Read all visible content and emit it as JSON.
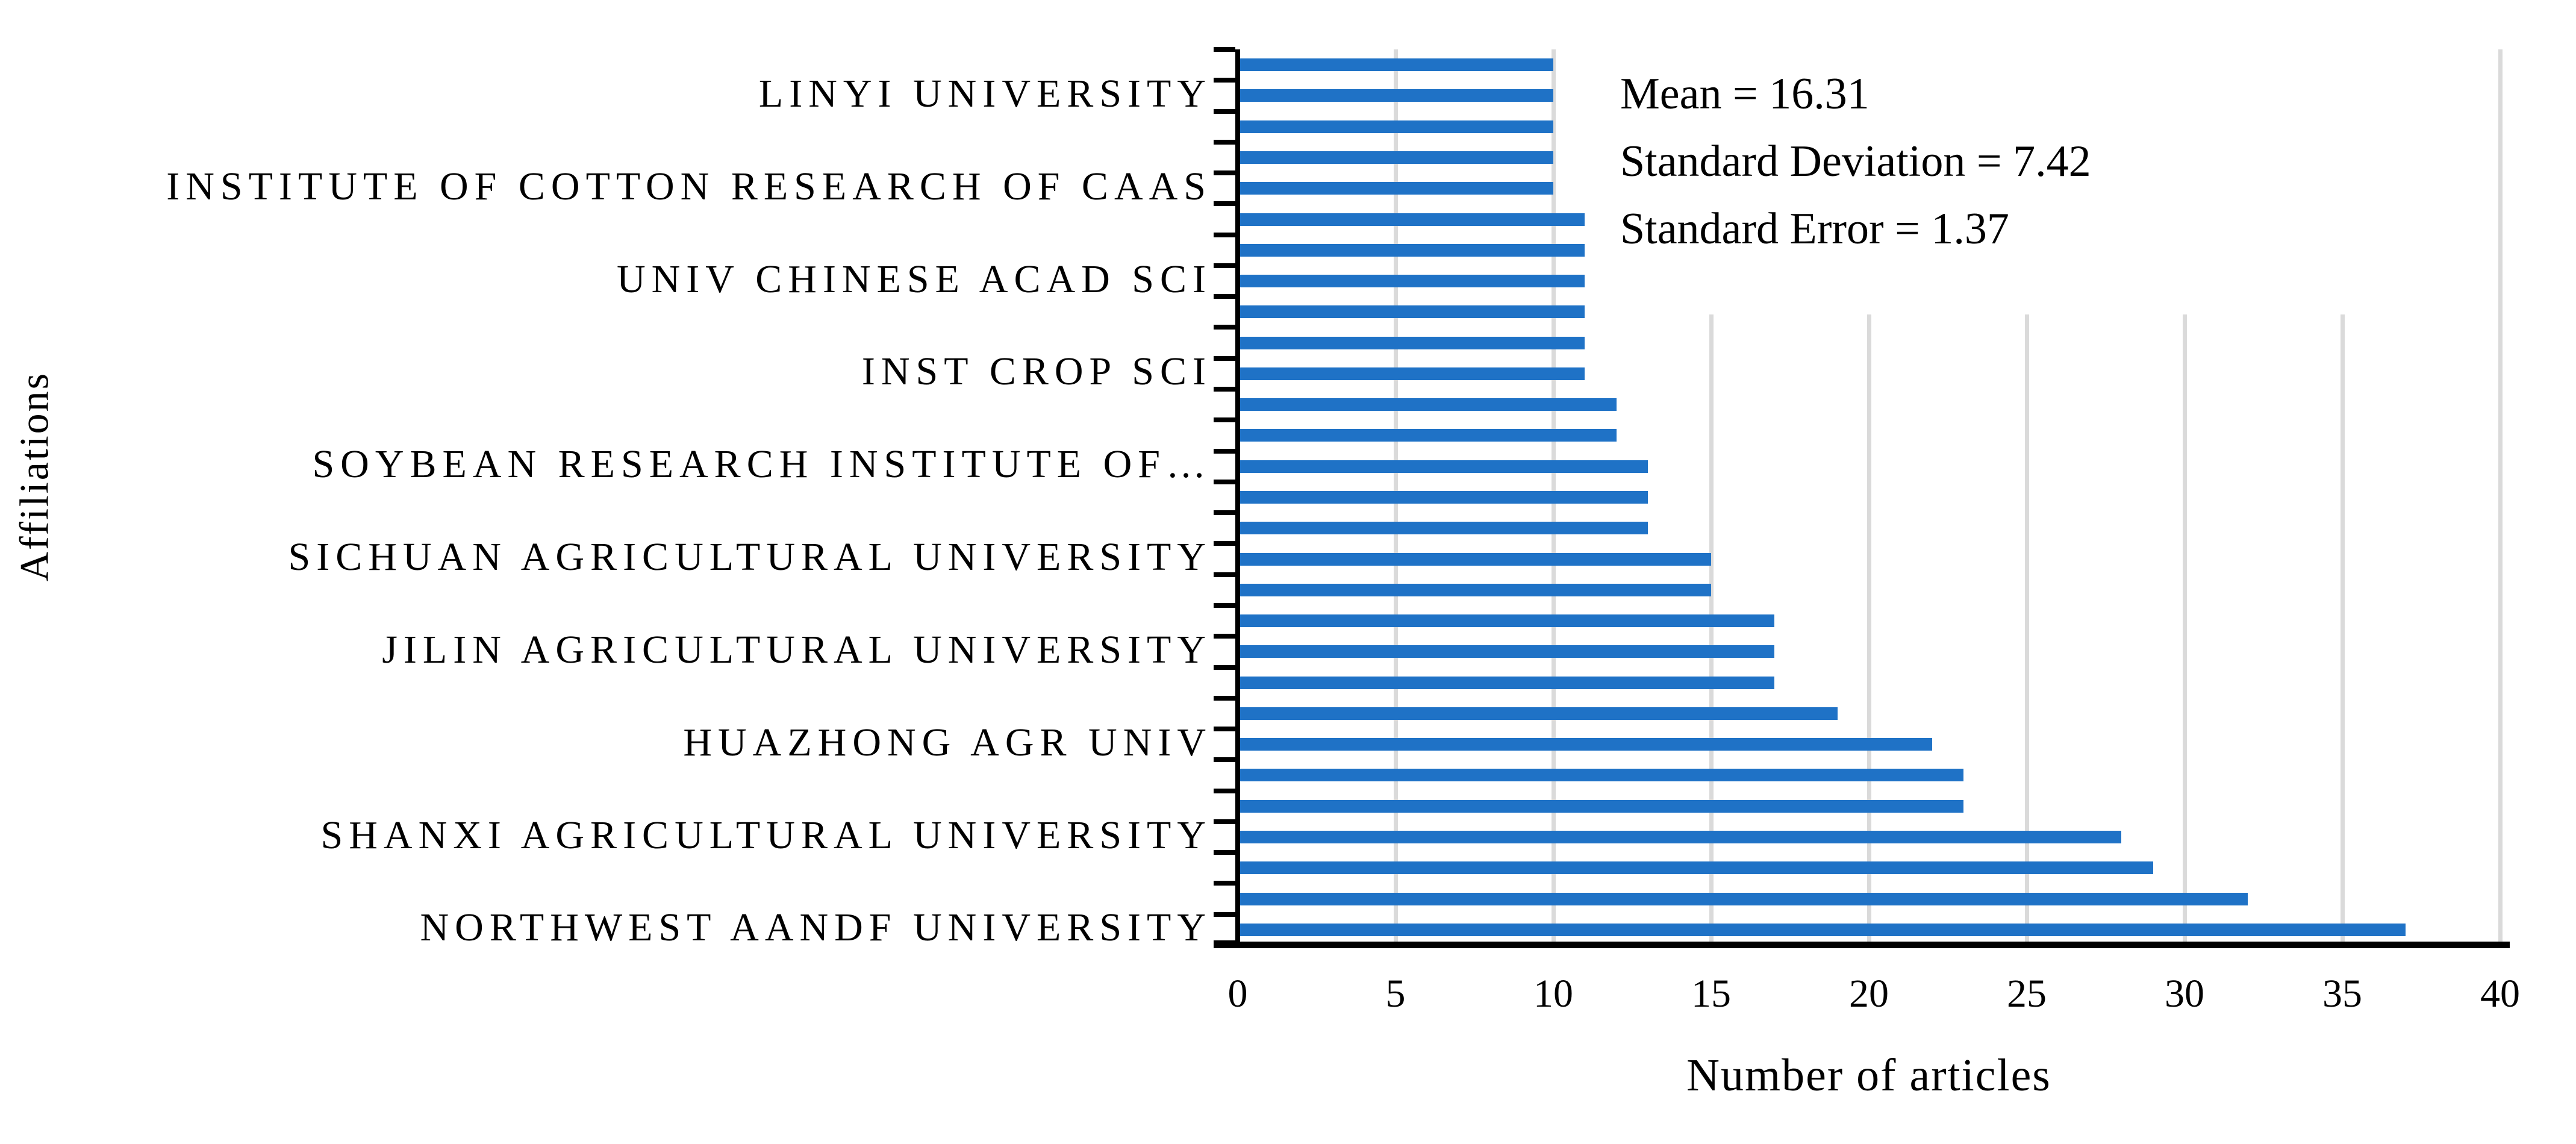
{
  "chart_data": {
    "type": "bar",
    "orientation": "horizontal",
    "xlabel": "Number of articles",
    "ylabel": "Affiliations",
    "xlim": [
      0,
      40
    ],
    "xticks": [
      0,
      5,
      10,
      15,
      20,
      25,
      30,
      35,
      40
    ],
    "grid": "vertical",
    "legend": "none",
    "bar_color": "#1F72C6",
    "gridline_color": "#DADADA",
    "axis_color": "#000000",
    "n_bars": 29,
    "values_top_to_bottom": [
      10,
      10,
      10,
      10,
      10,
      11,
      11,
      11,
      11,
      11,
      11,
      12,
      12,
      13,
      13,
      13,
      15,
      15,
      17,
      17,
      17,
      19,
      22,
      23,
      23,
      28,
      29,
      32,
      37
    ],
    "category_labels": [
      {
        "text": "LINYI UNIVERSITY",
        "bar_index": 2,
        "value": 10
      },
      {
        "text": "INSTITUTE OF COTTON RESEARCH OF CAAS",
        "bar_index": 5,
        "value": 10
      },
      {
        "text": "UNIV CHINESE ACAD SCI",
        "bar_index": 8,
        "value": 11
      },
      {
        "text": "INST CROP SCI",
        "bar_index": 11,
        "value": 11
      },
      {
        "text": "SOYBEAN RESEARCH INSTITUTE OF…",
        "bar_index": 14,
        "value": 13
      },
      {
        "text": "SICHUAN AGRICULTURAL UNIVERSITY",
        "bar_index": 17,
        "value": 15
      },
      {
        "text": "JILIN AGRICULTURAL UNIVERSITY",
        "bar_index": 20,
        "value": 17
      },
      {
        "text": "HUAZHONG AGR UNIV",
        "bar_index": 23,
        "value": 22
      },
      {
        "text": "SHANXI AGRICULTURAL UNIVERSITY",
        "bar_index": 26,
        "value": 28
      },
      {
        "text": "NORTHWEST AANDF UNIVERSITY",
        "bar_index": 29,
        "value": 37
      }
    ],
    "annotations": {
      "mean": "Mean = 16.31",
      "std_dev": "Standard Deviation  = 7.42",
      "std_err": "Standard Error =  1.37"
    }
  }
}
